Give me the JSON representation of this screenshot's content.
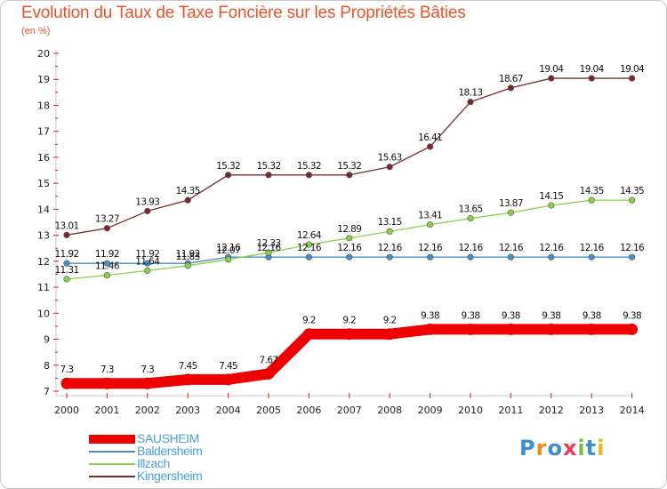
{
  "title": "Evolution du Taux de Taxe Foncière sur les Propriétés Bâties",
  "subtitle": "(en %)",
  "logo_text": "Proxiti",
  "chart_data": {
    "type": "line",
    "title": "Evolution du Taux de Taxe Foncière sur les Propriétés Bâties",
    "ylabel": "(en %)",
    "xlabel": "",
    "x": [
      2000,
      2001,
      2002,
      2003,
      2004,
      2005,
      2006,
      2007,
      2008,
      2009,
      2010,
      2011,
      2012,
      2013,
      2014
    ],
    "ylim": [
      7,
      20
    ],
    "yticks": [
      7,
      8,
      9,
      10,
      11,
      12,
      13,
      14,
      15,
      16,
      17,
      18,
      19,
      20
    ],
    "grid": false,
    "legend_position": "bottom-left",
    "series": [
      {
        "name": "SAUSHEIM",
        "color": "#ee0000",
        "emphasis": true,
        "values": [
          7.3,
          7.3,
          7.3,
          7.45,
          7.45,
          7.67,
          9.2,
          9.2,
          9.2,
          9.38,
          9.38,
          9.38,
          9.38,
          9.38,
          9.38
        ],
        "labels": [
          "7.3",
          "7.3",
          "7.3",
          "7.45",
          "7.45",
          "7.67",
          "9.2",
          "9.2",
          "9.2",
          "9.38",
          "9.38",
          "9.38",
          "9.38",
          "9.38",
          "9.38"
        ]
      },
      {
        "name": "Baldersheim",
        "color": "#4a8ec8",
        "values": [
          11.92,
          11.92,
          11.92,
          11.92,
          12.16,
          12.16,
          12.16,
          12.16,
          12.16,
          12.16,
          12.16,
          12.16,
          12.16,
          12.16,
          12.16
        ],
        "labels": [
          "11.92",
          "11.92",
          "11.92",
          "11.92",
          "12.16",
          "12.16",
          "12.16",
          "12.16",
          "12.16",
          "12.16",
          "12.16",
          "12.16",
          "12.16",
          "12.16",
          "12.16"
        ]
      },
      {
        "name": "Illzach",
        "color": "#88d048",
        "values": [
          11.31,
          11.46,
          11.64,
          11.83,
          12.07,
          12.33,
          12.64,
          12.89,
          13.15,
          13.41,
          13.65,
          13.87,
          14.15,
          14.35,
          14.35
        ],
        "labels": [
          "11.31",
          "11.46",
          "11.64",
          "11.83",
          "12.07",
          "12.33",
          "12.64",
          "12.89",
          "13.15",
          "13.41",
          "13.65",
          "13.87",
          "14.15",
          "14.35",
          "14.35"
        ]
      },
      {
        "name": "Kingersheim",
        "color": "#7a2a2a",
        "values": [
          13.01,
          13.27,
          13.93,
          14.35,
          15.32,
          15.32,
          15.32,
          15.32,
          15.63,
          16.41,
          18.13,
          18.67,
          19.04,
          19.04,
          19.04
        ],
        "labels": [
          "13.01",
          "13.27",
          "13.93",
          "14.35",
          "15.32",
          "15.32",
          "15.32",
          "15.32",
          "15.63",
          "16.41",
          "18.13",
          "18.67",
          "19.04",
          "19.04",
          "19.04"
        ]
      }
    ]
  }
}
